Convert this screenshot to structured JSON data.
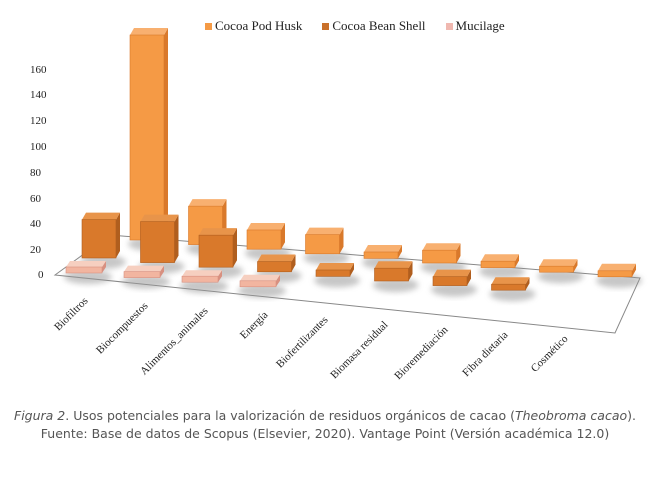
{
  "chart_data": {
    "type": "bar",
    "subtype": "3d-column",
    "title": "",
    "xlabel": "",
    "ylabel": "",
    "ylim": [
      0,
      160
    ],
    "yticks": [
      0,
      20,
      40,
      60,
      80,
      100,
      120,
      140,
      160
    ],
    "grid": false,
    "legend_position": "top",
    "categories": [
      "Biofiltros",
      "Biocompuestos",
      "Alimentos_animales",
      "Energía",
      "Biofertilizantes",
      "Biomasa residual",
      "Bioremediación",
      "Fibra dietaria",
      "Cosmético"
    ],
    "series": [
      {
        "name": "Cocoa Pod Husk",
        "color": "#F59A45",
        "values": [
          160,
          30,
          15,
          15,
          5,
          10,
          5,
          3,
          2
        ]
      },
      {
        "name": "Cocoa Bean Shell",
        "color": "#D9792B",
        "values": [
          30,
          32,
          25,
          8,
          5,
          10,
          7,
          3,
          0
        ]
      },
      {
        "name": "Mucilage",
        "color": "#F2B5A0",
        "values": [
          1,
          1,
          1,
          1,
          0,
          0,
          0,
          0,
          0
        ]
      }
    ]
  },
  "legend": [
    {
      "label": "Cocoa Pod Husk",
      "color": "#F59A45"
    },
    {
      "label": "Cocoa Bean Shell",
      "color": "#C9702A"
    },
    {
      "label": "Mucilage",
      "color": "#F0B8B0"
    }
  ],
  "y_axis_labels": [
    "160",
    "140",
    "120",
    "100",
    "80",
    "60",
    "40",
    "20",
    "0"
  ],
  "caption": {
    "figure_label": "Figura 2",
    "line1_pre": ". Usos potenciales para la valorización de residuos orgánicos de cacao (",
    "line1_italic": "Theobroma cacao",
    "line1_post": ").",
    "line2": "Fuente: Base de datos de Scopus (Elsevier, 2020). Vantage Point (Versión académica 12.0)"
  }
}
